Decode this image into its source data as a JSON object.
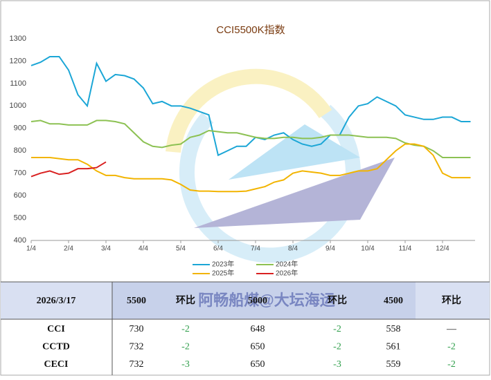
{
  "chart_data": {
    "type": "line",
    "title": "CCI5500K指数",
    "categories": [
      "1/4",
      null,
      null,
      null,
      "2/4",
      null,
      null,
      null,
      "3/4",
      null,
      null,
      null,
      "4/4",
      null,
      null,
      null,
      "5/4",
      null,
      null,
      null,
      "6/4",
      null,
      null,
      null,
      "7/4",
      null,
      null,
      null,
      "8/4",
      null,
      null,
      null,
      "9/4",
      null,
      null,
      null,
      "10/4",
      null,
      null,
      null,
      "11/4",
      null,
      null,
      null,
      "12/4",
      null,
      null,
      null
    ],
    "ylim": [
      400,
      1300
    ],
    "yticks": [
      400,
      500,
      600,
      700,
      800,
      900,
      1000,
      1100,
      1200,
      1300
    ],
    "grid": false,
    "series": [
      {
        "name": "2023年",
        "color": "#1ba6d6",
        "values": [
          1180,
          1195,
          1220,
          1220,
          1160,
          1050,
          1000,
          1190,
          1110,
          1140,
          1135,
          1120,
          1080,
          1010,
          1020,
          1000,
          1000,
          990,
          975,
          960,
          780,
          800,
          820,
          820,
          860,
          850,
          870,
          880,
          850,
          830,
          820,
          830,
          870,
          870,
          950,
          1000,
          1010,
          1040,
          1020,
          1000,
          960,
          950,
          940,
          940,
          950,
          950,
          930,
          930
        ]
      },
      {
        "name": "2024年",
        "color": "#8cc152",
        "values": [
          930,
          935,
          920,
          920,
          915,
          915,
          915,
          935,
          935,
          930,
          920,
          880,
          840,
          820,
          815,
          825,
          830,
          860,
          870,
          890,
          885,
          880,
          880,
          870,
          860,
          855,
          855,
          860,
          860,
          855,
          855,
          860,
          870,
          870,
          870,
          865,
          860,
          860,
          860,
          855,
          835,
          825,
          820,
          800,
          770,
          770,
          770,
          770
        ]
      },
      {
        "name": "2025年",
        "color": "#f2b400",
        "values": [
          770,
          770,
          770,
          765,
          760,
          760,
          740,
          710,
          690,
          690,
          680,
          675,
          675,
          675,
          675,
          670,
          650,
          625,
          620,
          620,
          618,
          618,
          618,
          620,
          630,
          640,
          660,
          670,
          700,
          710,
          705,
          700,
          690,
          690,
          700,
          710,
          710,
          720,
          760,
          800,
          830,
          830,
          820,
          780,
          700,
          680,
          680,
          680
        ]
      },
      {
        "name": "2026年",
        "color": "#d92020",
        "values": [
          685,
          700,
          710,
          695,
          700,
          720,
          720,
          725,
          750,
          null,
          null,
          null,
          null,
          null,
          null,
          null,
          null,
          null,
          null,
          null,
          null,
          null,
          null,
          null,
          null,
          null,
          null,
          null,
          null,
          null,
          null,
          null,
          null,
          null,
          null,
          null,
          null,
          null,
          null,
          null,
          null,
          null,
          null,
          null,
          null,
          null,
          null,
          null
        ]
      }
    ]
  },
  "watermark": "阿畅船煤@大坛海运",
  "table": {
    "header": [
      "2026/3/17",
      "5500",
      "环比",
      "5000",
      "环比",
      "4500",
      "环比"
    ],
    "rows": [
      [
        "CCI",
        "730",
        "-2",
        "648",
        "-2",
        "558",
        "—"
      ],
      [
        "CCTD",
        "732",
        "-2",
        "650",
        "-2",
        "561",
        "-2"
      ],
      [
        "CECI",
        "732",
        "-3",
        "650",
        "-3",
        "559",
        "-2"
      ]
    ]
  }
}
